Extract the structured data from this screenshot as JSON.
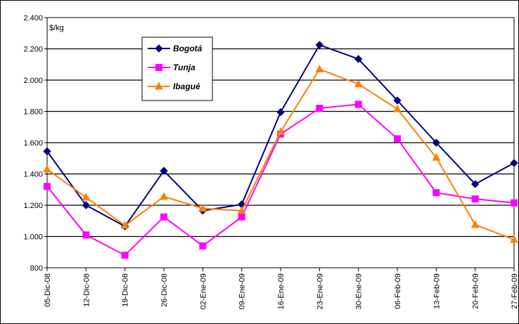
{
  "chart_data": {
    "type": "line",
    "title": "",
    "xlabel": "",
    "ylabel": "$/kg",
    "ylim": [
      800,
      2400
    ],
    "yticks": [
      "800",
      "1.000",
      "1.200",
      "1.400",
      "1.600",
      "1.800",
      "2.000",
      "2.200",
      "2.400"
    ],
    "yticks_values": [
      800,
      1000,
      1200,
      1400,
      1600,
      1800,
      2000,
      2200,
      2400
    ],
    "grid": true,
    "legend_position": "top-left inside plot",
    "categories": [
      "05-Dic-08",
      "12-Dic-08",
      "19-Dic-08",
      "26-Dic-08",
      "02-Ene-09",
      "09-Ene-09",
      "16-Ene-09",
      "23-Ene-09",
      "30-Ene-09",
      "06-Feb-09",
      "13-Feb-09",
      "20-Feb-09",
      "27-Feb-09"
    ],
    "series": [
      {
        "name": "Bogotá",
        "color": "#000080",
        "marker": "diamond",
        "values": [
          1545,
          1200,
          1065,
          1420,
          1165,
          1205,
          1795,
          2225,
          2135,
          1870,
          1600,
          1335,
          1470
        ]
      },
      {
        "name": "Tunja",
        "color": "#FF00FF",
        "marker": "square",
        "values": [
          1320,
          1010,
          880,
          1125,
          940,
          1125,
          1655,
          1820,
          1845,
          1625,
          1280,
          1240,
          1215
        ]
      },
      {
        "name": "Ibagué",
        "color": "#FF8000",
        "marker": "triangle",
        "values": [
          1430,
          1250,
          1070,
          1255,
          1180,
          1165,
          1670,
          2070,
          1975,
          1815,
          1505,
          1075,
          980
        ]
      }
    ]
  }
}
